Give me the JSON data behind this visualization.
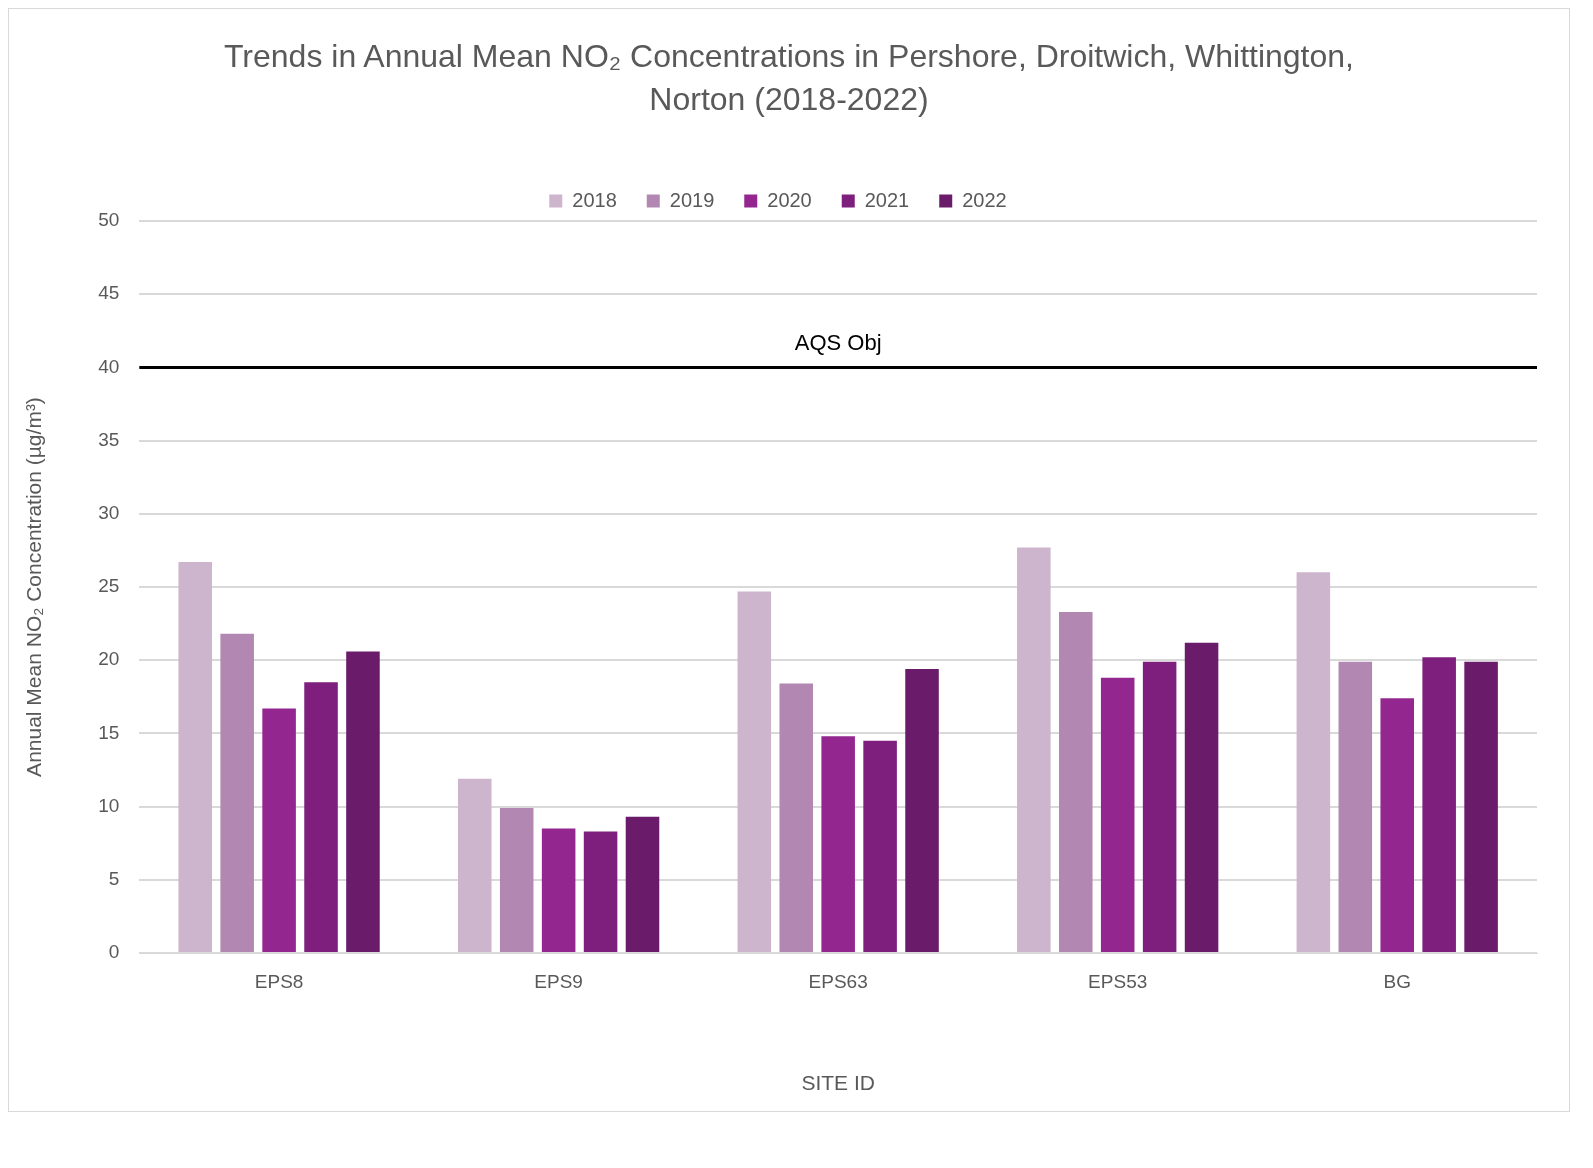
{
  "chart_data": {
    "type": "bar",
    "title": "Trends in Annual Mean NO₂ Concentrations in Pershore, Droitwich, Whittington, Norton (2018-2022)",
    "xlabel": "SITE ID",
    "ylabel": "Annual Mean NO₂ Concentration (µg/m³)",
    "categories": [
      "EPS8",
      "EPS9",
      "EPS63",
      "EPS53",
      "BG"
    ],
    "series": [
      {
        "name": "2018",
        "color": "#cdb5cd",
        "values": [
          26.7,
          11.9,
          24.7,
          27.7,
          26.0
        ]
      },
      {
        "name": "2019",
        "color": "#b288b2",
        "values": [
          21.8,
          9.9,
          18.4,
          23.3,
          19.9
        ]
      },
      {
        "name": "2020",
        "color": "#93278f",
        "values": [
          16.7,
          8.5,
          14.8,
          18.8,
          17.4
        ]
      },
      {
        "name": "2021",
        "color": "#7e1f7e",
        "values": [
          18.5,
          8.3,
          14.5,
          19.9,
          20.2
        ]
      },
      {
        "name": "2022",
        "color": "#6a1b6a",
        "values": [
          20.6,
          9.3,
          19.4,
          21.2,
          19.9
        ]
      }
    ],
    "ylim": [
      0,
      50
    ],
    "yticks": [
      0,
      5,
      10,
      15,
      20,
      25,
      30,
      35,
      40,
      45,
      50
    ],
    "grid": "y",
    "legend": "top",
    "ref_lines": [
      {
        "axis": "y",
        "value": 40,
        "label": "AQS Obj",
        "color": "#000000"
      }
    ]
  }
}
